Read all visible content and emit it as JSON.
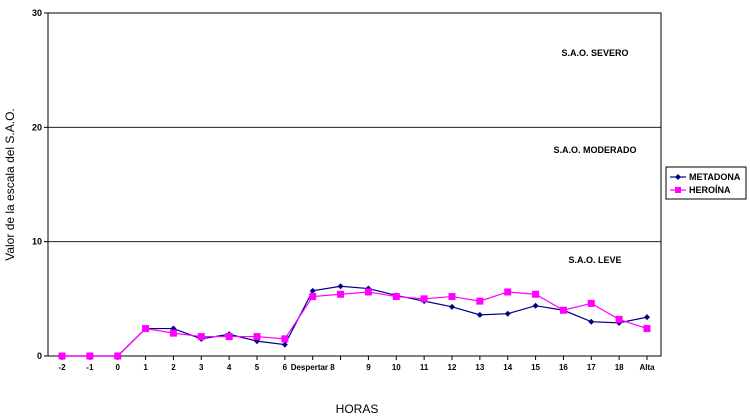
{
  "chart_data": {
    "type": "line",
    "title": "",
    "xlabel": "HORAS",
    "ylabel": "Valor de la escala del S.A.O.",
    "ylim": [
      0,
      30
    ],
    "yticks": [
      "0",
      "10",
      "20",
      "30"
    ],
    "grid": true,
    "legend_position": "right",
    "categories": [
      "-2",
      "-1",
      "0",
      "1",
      "2",
      "3",
      "4",
      "5",
      "6",
      "Despertar 8",
      "",
      "9",
      "10",
      "11",
      "12",
      "13",
      "14",
      "15",
      "16",
      "17",
      "18",
      "Alta"
    ],
    "series": [
      {
        "name": "METADONA",
        "color": "#000080",
        "marker": "diamond",
        "values": [
          0,
          0,
          0,
          2.4,
          2.4,
          1.5,
          1.9,
          1.3,
          1.0,
          5.7,
          6.1,
          5.9,
          5.3,
          4.8,
          4.3,
          3.6,
          3.7,
          4.4,
          4.0,
          3.0,
          2.9,
          3.4
        ]
      },
      {
        "name": "HEROÍNA",
        "color": "#ff00ff",
        "marker": "square",
        "values": [
          0,
          0,
          0,
          2.4,
          2.0,
          1.7,
          1.7,
          1.7,
          1.5,
          5.2,
          5.4,
          5.6,
          5.2,
          5.0,
          5.2,
          4.8,
          5.6,
          5.4,
          4.0,
          4.6,
          3.2,
          2.4
        ]
      }
    ],
    "annotations": [
      {
        "text": "S.A.O.  SEVERO",
        "y": 26.5
      },
      {
        "text": "S.A.O.  MODERADO",
        "y": 18.0
      },
      {
        "text": "S.A.O.  LEVE",
        "y": 8.4
      }
    ]
  }
}
